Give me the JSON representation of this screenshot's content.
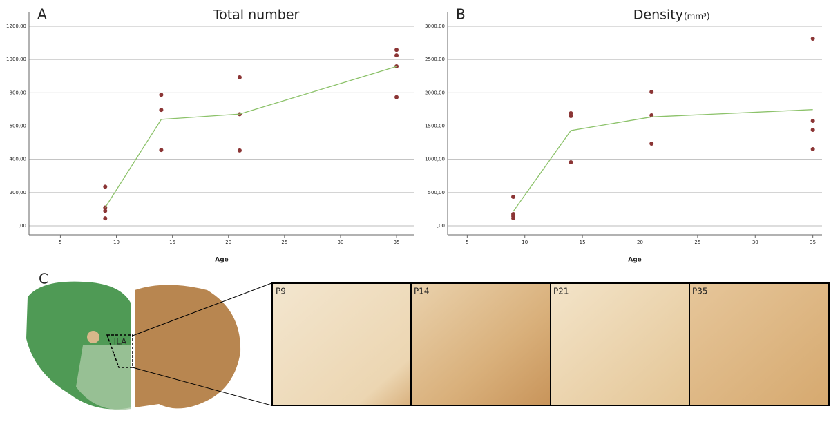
{
  "chart_data": [
    {
      "type": "scatter",
      "panel": "A",
      "title": "Total number",
      "xlabel": "Age",
      "xlim": [
        2.2,
        36.6
      ],
      "xticks": [
        5,
        10,
        15,
        20,
        25,
        30,
        35
      ],
      "ylim": [
        -54,
        1200
      ],
      "yticks": [
        {
          "value": 0,
          "label": ",00"
        },
        {
          "value": 200,
          "label": "200,00"
        },
        {
          "value": 400,
          "label": "400,00"
        },
        {
          "value": 600,
          "label": "600,00"
        },
        {
          "value": 800,
          "label": "800,00"
        },
        {
          "value": 1000,
          "label": "1000,00"
        },
        {
          "value": 1200,
          "label": "1200,00"
        }
      ],
      "grid": true,
      "series": [
        {
          "type": "scatter",
          "color": "#8b3535",
          "x": [
            9,
            9,
            9,
            9,
            14,
            14,
            14,
            21,
            21,
            21,
            35,
            35,
            35,
            35
          ],
          "values": [
            235,
            110,
            90,
            45,
            788,
            697,
            456,
            893,
            671,
            453,
            1058,
            1025,
            959,
            774
          ]
        },
        {
          "type": "line",
          "color": "#8cc26a",
          "x": [
            9,
            14,
            21,
            35
          ],
          "values": [
            110,
            640,
            672,
            958
          ]
        }
      ]
    },
    {
      "type": "scatter",
      "panel": "B",
      "title": "Density",
      "title_unit": "(mm³)",
      "xlabel": "Age",
      "xlim": [
        3.3,
        35.8
      ],
      "xticks": [
        5,
        10,
        15,
        20,
        25,
        30,
        35
      ],
      "ylim": [
        -135,
        3000
      ],
      "yticks": [
        {
          "value": 0,
          "label": ",00"
        },
        {
          "value": 500,
          "label": "500,00"
        },
        {
          "value": 1000,
          "label": "1000,00"
        },
        {
          "value": 1500,
          "label": "1500,00"
        },
        {
          "value": 2000,
          "label": "2000,00"
        },
        {
          "value": 2500,
          "label": "2500,00"
        },
        {
          "value": 3000,
          "label": "3000,00"
        }
      ],
      "grid": true,
      "series": [
        {
          "type": "scatter",
          "color": "#8b3535",
          "x": [
            9,
            9,
            9,
            9,
            14,
            14,
            14,
            21,
            21,
            21,
            35,
            35,
            35,
            35
          ],
          "values": [
            436,
            176,
            145,
            114,
            1692,
            1651,
            955,
            2014,
            1661,
            1235,
            2813,
            1578,
            1443,
            1152
          ]
        },
        {
          "type": "line",
          "color": "#8cc26a",
          "x": [
            9,
            14,
            21,
            35
          ],
          "values": [
            218,
            1433,
            1637,
            1747
          ]
        }
      ]
    }
  ],
  "panel_c": {
    "label": "C",
    "region": "ILA",
    "images": [
      "P9",
      "P14",
      "P21",
      "P35"
    ]
  }
}
